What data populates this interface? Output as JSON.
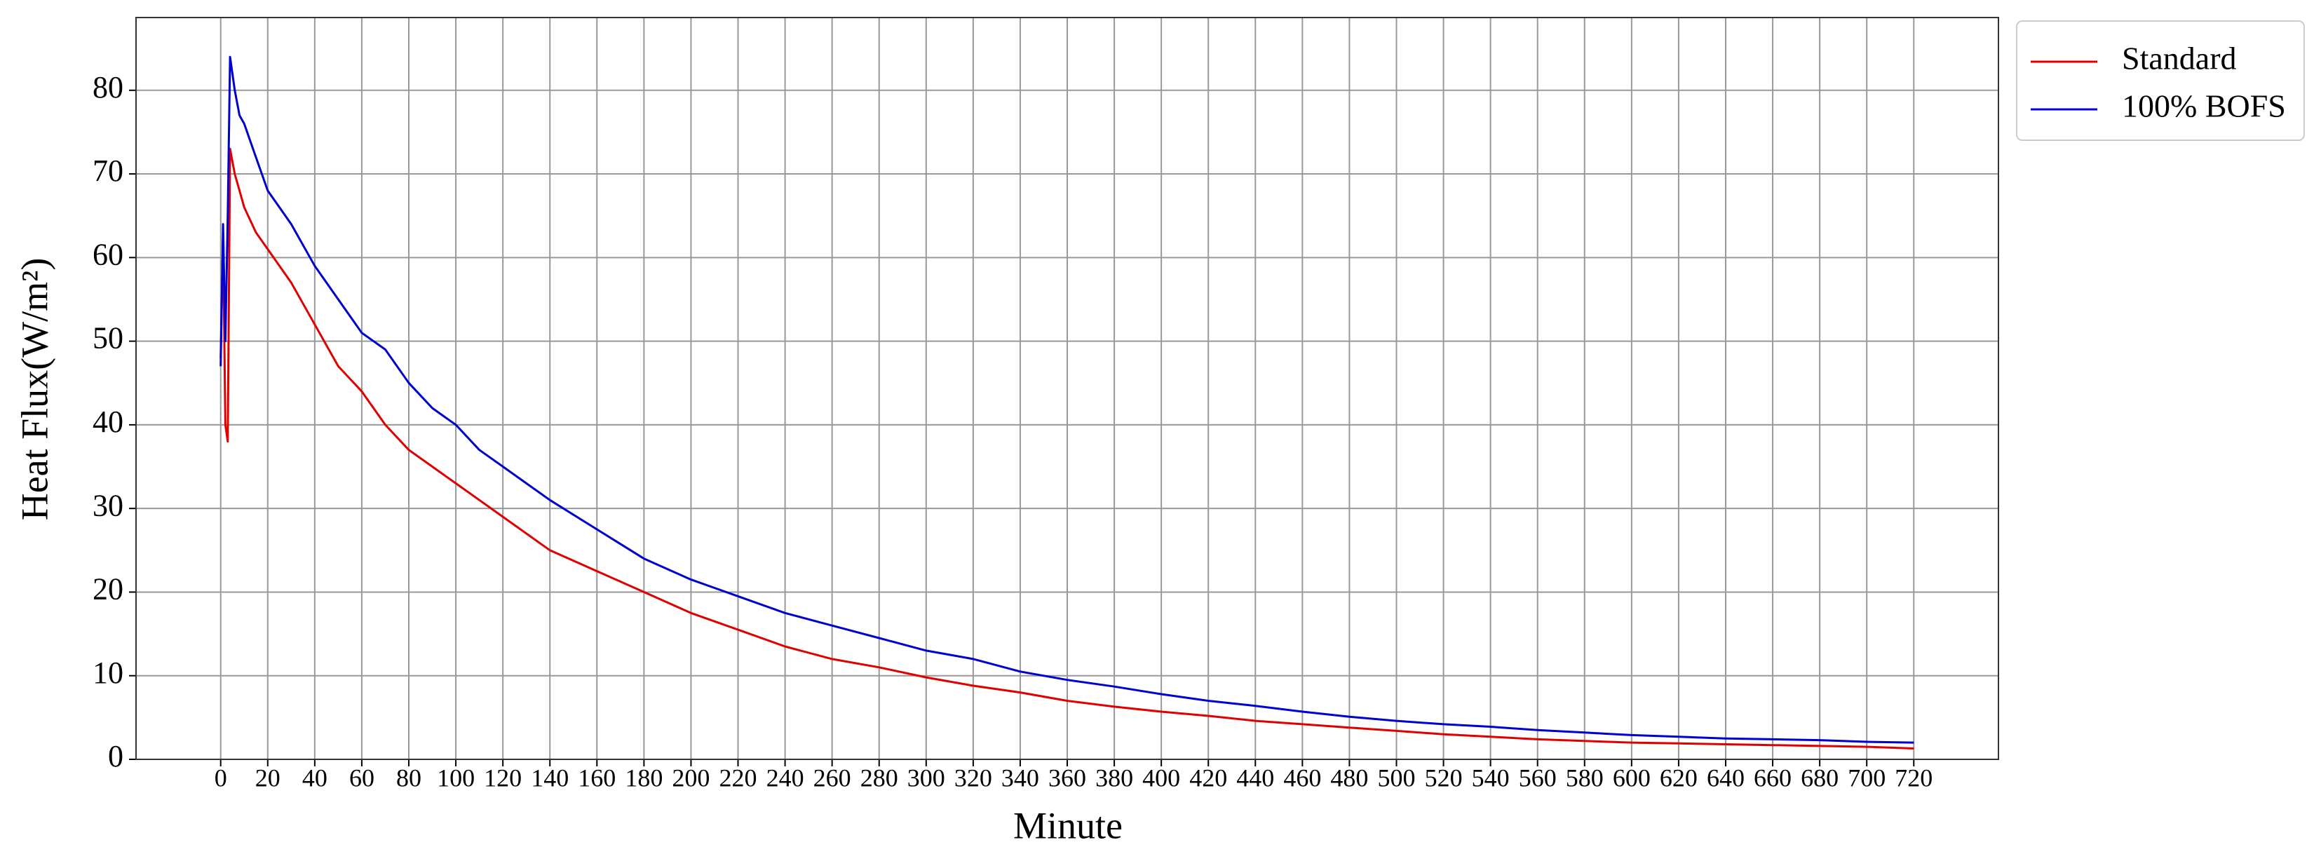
{
  "chart_data": {
    "type": "line",
    "x_label": "Minute",
    "y_label": "Heat Flux(W/m²)",
    "x": [
      0,
      1,
      2,
      3,
      4,
      6,
      8,
      10,
      15,
      20,
      30,
      40,
      50,
      60,
      70,
      80,
      90,
      100,
      110,
      120,
      140,
      160,
      180,
      200,
      220,
      240,
      260,
      280,
      300,
      320,
      340,
      360,
      380,
      400,
      420,
      440,
      460,
      480,
      500,
      520,
      540,
      560,
      580,
      600,
      620,
      640,
      660,
      680,
      700,
      720
    ],
    "series": [
      {
        "name": "Standard",
        "color": "#e00000",
        "values": [
          48,
          63,
          40,
          38,
          73,
          70,
          68,
          66,
          63,
          61,
          57,
          52,
          47,
          44,
          40,
          37,
          35,
          33,
          31,
          29,
          25,
          22.5,
          20,
          17.5,
          15.5,
          13.5,
          12,
          11,
          9.8,
          8.8,
          8,
          7,
          6.3,
          5.7,
          5.2,
          4.6,
          4.2,
          3.8,
          3.4,
          3.0,
          2.7,
          2.4,
          2.2,
          2.0,
          1.9,
          1.8,
          1.7,
          1.6,
          1.5,
          1.3
        ]
      },
      {
        "name": "100% BOFS",
        "color": "#0000d0",
        "values": [
          47,
          64,
          50,
          65,
          84,
          80,
          77,
          76,
          72,
          68,
          64,
          59,
          55,
          51,
          49,
          45,
          42,
          40,
          37,
          35,
          31,
          27.5,
          24,
          21.5,
          19.5,
          17.5,
          16,
          14.5,
          13,
          12,
          10.5,
          9.5,
          8.7,
          7.8,
          7,
          6.4,
          5.7,
          5.1,
          4.6,
          4.2,
          3.9,
          3.5,
          3.2,
          2.9,
          2.7,
          2.5,
          2.4,
          2.3,
          2.1,
          2.0
        ]
      }
    ],
    "xlim": [
      -36,
      756
    ],
    "ylim": [
      0,
      88.7
    ],
    "xticks": [
      0,
      20,
      40,
      60,
      80,
      100,
      120,
      140,
      160,
      180,
      200,
      220,
      240,
      260,
      280,
      300,
      320,
      340,
      360,
      380,
      400,
      420,
      440,
      460,
      480,
      500,
      520,
      540,
      560,
      580,
      600,
      620,
      640,
      660,
      680,
      700,
      720
    ],
    "yticks": [
      0,
      10,
      20,
      30,
      40,
      50,
      60,
      70,
      80
    ],
    "grid": true,
    "legend": "upper right outside"
  }
}
